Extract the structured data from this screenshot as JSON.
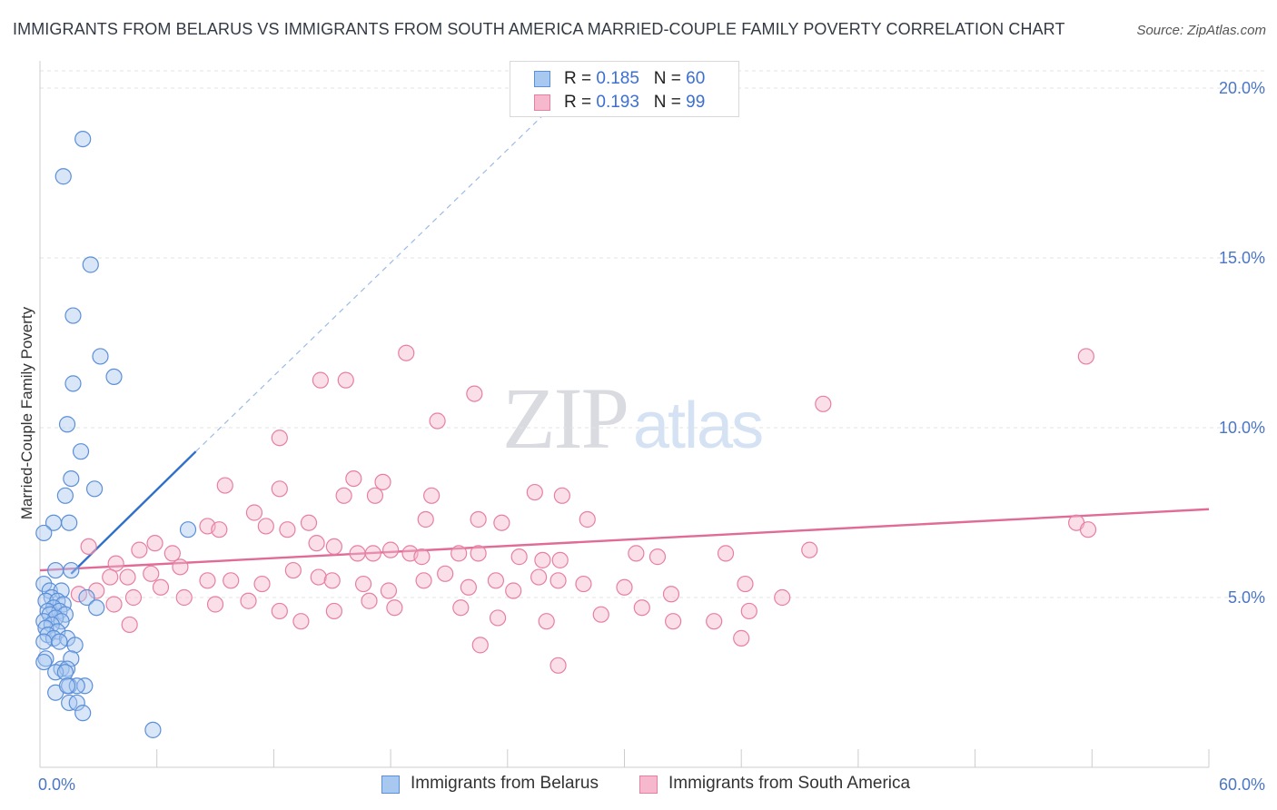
{
  "title": "IMMIGRANTS FROM BELARUS VS IMMIGRANTS FROM SOUTH AMERICA MARRIED-COUPLE FAMILY POVERTY CORRELATION CHART",
  "source": "Source: ZipAtlas.com",
  "watermark": {
    "zip": "ZIP",
    "atlas": "atlas"
  },
  "legend": {
    "series1": {
      "r_label": "R = ",
      "r_value": "0.185",
      "n_label": "N = ",
      "n_value": "60"
    },
    "series2": {
      "r_label": "R = ",
      "r_value": "0.193",
      "n_label": "N = ",
      "n_value": "99"
    }
  },
  "bottom_legend": {
    "series1": "Immigrants from Belarus",
    "series2": "Immigrants from South America"
  },
  "colors": {
    "belarus_fill": "#a9c8f0",
    "belarus_stroke": "#5b8fd8",
    "belarus_line": "#2f6fcb",
    "sa_fill": "#f5b8cc",
    "sa_stroke": "#e77fa1",
    "sa_line": "#e06b97",
    "grid": "#e3e3e3",
    "tick_text": "#4a76c6"
  },
  "chart_data": {
    "type": "scatter",
    "title": "IMMIGRANTS FROM BELARUS VS IMMIGRANTS FROM SOUTH AMERICA MARRIED-COUPLE FAMILY POVERTY CORRELATION CHART",
    "xlabel": "",
    "ylabel": "Married-Couple Family Poverty",
    "xlim": [
      0,
      60
    ],
    "ylim": [
      0,
      20
    ],
    "x_tick_labels": [
      "0.0%",
      "60.0%"
    ],
    "y_ticks": [
      5,
      10,
      15,
      20
    ],
    "y_tick_labels": [
      "5.0%",
      "10.0%",
      "15.0%",
      "20.0%"
    ],
    "legend_position": "top-center",
    "series": [
      {
        "name": "Immigrants from Belarus",
        "R": 0.185,
        "N": 60,
        "trend_solid": [
          [
            1.6,
            5.7
          ],
          [
            8.0,
            9.3
          ]
        ],
        "trend_dashed": [
          [
            8.0,
            9.3
          ],
          [
            26.0,
            19.3
          ]
        ],
        "points": [
          [
            2.2,
            18.5
          ],
          [
            1.2,
            17.4
          ],
          [
            2.6,
            14.8
          ],
          [
            1.7,
            13.3
          ],
          [
            3.1,
            12.1
          ],
          [
            3.8,
            11.5
          ],
          [
            1.7,
            11.3
          ],
          [
            1.4,
            10.1
          ],
          [
            2.1,
            9.3
          ],
          [
            1.6,
            8.5
          ],
          [
            2.8,
            8.2
          ],
          [
            1.3,
            8.0
          ],
          [
            0.7,
            7.2
          ],
          [
            1.5,
            7.2
          ],
          [
            0.2,
            6.9
          ],
          [
            7.6,
            7.0
          ],
          [
            0.8,
            5.8
          ],
          [
            1.6,
            5.8
          ],
          [
            0.2,
            5.4
          ],
          [
            0.5,
            5.2
          ],
          [
            1.1,
            5.2
          ],
          [
            0.6,
            5.0
          ],
          [
            0.3,
            4.9
          ],
          [
            0.9,
            4.9
          ],
          [
            2.4,
            5.0
          ],
          [
            1.2,
            4.8
          ],
          [
            0.7,
            4.7
          ],
          [
            0.4,
            4.6
          ],
          [
            1.0,
            4.6
          ],
          [
            2.9,
            4.7
          ],
          [
            0.5,
            4.5
          ],
          [
            1.3,
            4.5
          ],
          [
            0.8,
            4.4
          ],
          [
            0.2,
            4.3
          ],
          [
            1.1,
            4.3
          ],
          [
            0.6,
            4.2
          ],
          [
            0.3,
            4.1
          ],
          [
            0.9,
            4.0
          ],
          [
            0.4,
            3.9
          ],
          [
            0.7,
            3.8
          ],
          [
            1.4,
            3.8
          ],
          [
            0.2,
            3.7
          ],
          [
            1.0,
            3.7
          ],
          [
            1.8,
            3.6
          ],
          [
            0.3,
            3.2
          ],
          [
            1.6,
            3.2
          ],
          [
            0.2,
            3.1
          ],
          [
            1.1,
            2.9
          ],
          [
            1.4,
            2.9
          ],
          [
            0.8,
            2.8
          ],
          [
            1.3,
            2.8
          ],
          [
            1.5,
            2.4
          ],
          [
            2.3,
            2.4
          ],
          [
            1.9,
            2.4
          ],
          [
            0.8,
            2.2
          ],
          [
            1.4,
            2.4
          ],
          [
            1.5,
            1.9
          ],
          [
            1.9,
            1.9
          ],
          [
            2.2,
            1.6
          ],
          [
            5.8,
            1.1
          ]
        ]
      },
      {
        "name": "Immigrants from South America",
        "R": 0.193,
        "N": 99,
        "trend_solid": [
          [
            0,
            5.8
          ],
          [
            60,
            7.6
          ]
        ],
        "points": [
          [
            12.3,
            9.7
          ],
          [
            18.8,
            12.2
          ],
          [
            14.4,
            11.4
          ],
          [
            15.7,
            11.4
          ],
          [
            20.4,
            10.2
          ],
          [
            22.3,
            11.0
          ],
          [
            40.2,
            10.7
          ],
          [
            53.7,
            12.1
          ],
          [
            9.5,
            8.3
          ],
          [
            12.3,
            8.2
          ],
          [
            11.0,
            7.5
          ],
          [
            15.6,
            8.0
          ],
          [
            16.1,
            8.5
          ],
          [
            17.6,
            8.4
          ],
          [
            17.2,
            8.0
          ],
          [
            20.1,
            8.0
          ],
          [
            26.8,
            8.0
          ],
          [
            25.4,
            8.1
          ],
          [
            19.8,
            7.3
          ],
          [
            22.5,
            7.3
          ],
          [
            23.7,
            7.2
          ],
          [
            28.1,
            7.3
          ],
          [
            8.6,
            7.1
          ],
          [
            9.2,
            7.0
          ],
          [
            11.6,
            7.1
          ],
          [
            13.8,
            7.2
          ],
          [
            12.7,
            7.0
          ],
          [
            15.1,
            6.5
          ],
          [
            14.2,
            6.6
          ],
          [
            16.3,
            6.3
          ],
          [
            17.1,
            6.3
          ],
          [
            18.0,
            6.4
          ],
          [
            19.0,
            6.3
          ],
          [
            19.6,
            6.2
          ],
          [
            21.5,
            6.3
          ],
          [
            22.5,
            6.3
          ],
          [
            24.6,
            6.2
          ],
          [
            25.8,
            6.1
          ],
          [
            26.7,
            6.1
          ],
          [
            30.6,
            6.3
          ],
          [
            31.7,
            6.2
          ],
          [
            35.2,
            6.3
          ],
          [
            39.5,
            6.4
          ],
          [
            53.2,
            7.2
          ],
          [
            53.8,
            7.0
          ],
          [
            2.5,
            6.5
          ],
          [
            5.1,
            6.4
          ],
          [
            5.9,
            6.6
          ],
          [
            6.8,
            6.3
          ],
          [
            3.9,
            6.0
          ],
          [
            3.6,
            5.6
          ],
          [
            4.5,
            5.6
          ],
          [
            5.7,
            5.7
          ],
          [
            7.2,
            5.9
          ],
          [
            8.6,
            5.5
          ],
          [
            9.8,
            5.5
          ],
          [
            11.4,
            5.4
          ],
          [
            13.0,
            5.8
          ],
          [
            14.3,
            5.6
          ],
          [
            15.0,
            5.5
          ],
          [
            16.6,
            5.4
          ],
          [
            17.9,
            5.2
          ],
          [
            19.7,
            5.5
          ],
          [
            20.8,
            5.7
          ],
          [
            22.0,
            5.3
          ],
          [
            23.4,
            5.5
          ],
          [
            24.3,
            5.2
          ],
          [
            25.6,
            5.6
          ],
          [
            26.6,
            5.5
          ],
          [
            27.9,
            5.4
          ],
          [
            30.0,
            5.3
          ],
          [
            32.4,
            5.1
          ],
          [
            36.2,
            5.4
          ],
          [
            38.1,
            5.0
          ],
          [
            2.0,
            5.1
          ],
          [
            2.9,
            5.2
          ],
          [
            3.8,
            4.8
          ],
          [
            4.8,
            5.0
          ],
          [
            6.2,
            5.3
          ],
          [
            7.4,
            5.0
          ],
          [
            9.0,
            4.8
          ],
          [
            10.7,
            4.9
          ],
          [
            12.3,
            4.6
          ],
          [
            13.4,
            4.3
          ],
          [
            15.1,
            4.6
          ],
          [
            16.9,
            4.9
          ],
          [
            18.2,
            4.7
          ],
          [
            21.6,
            4.7
          ],
          [
            23.5,
            4.4
          ],
          [
            26.0,
            4.3
          ],
          [
            28.8,
            4.5
          ],
          [
            30.9,
            4.7
          ],
          [
            32.5,
            4.3
          ],
          [
            34.6,
            4.3
          ],
          [
            36.4,
            4.6
          ],
          [
            4.6,
            4.2
          ],
          [
            22.6,
            3.6
          ],
          [
            36.0,
            3.8
          ],
          [
            26.6,
            3.0
          ]
        ]
      }
    ]
  }
}
